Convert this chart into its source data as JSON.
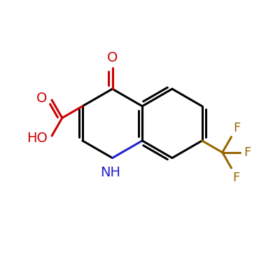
{
  "background_color": "#ffffff",
  "bond_color": "#000000",
  "nitrogen_color": "#2222cc",
  "oxygen_color": "#cc0000",
  "fluorine_color": "#996600",
  "bond_width": 2.2,
  "font_size": 14,
  "fig_width": 4.0,
  "fig_height": 4.0,
  "dpi": 100,
  "xlim": [
    0,
    10
  ],
  "ylim": [
    0,
    10
  ]
}
